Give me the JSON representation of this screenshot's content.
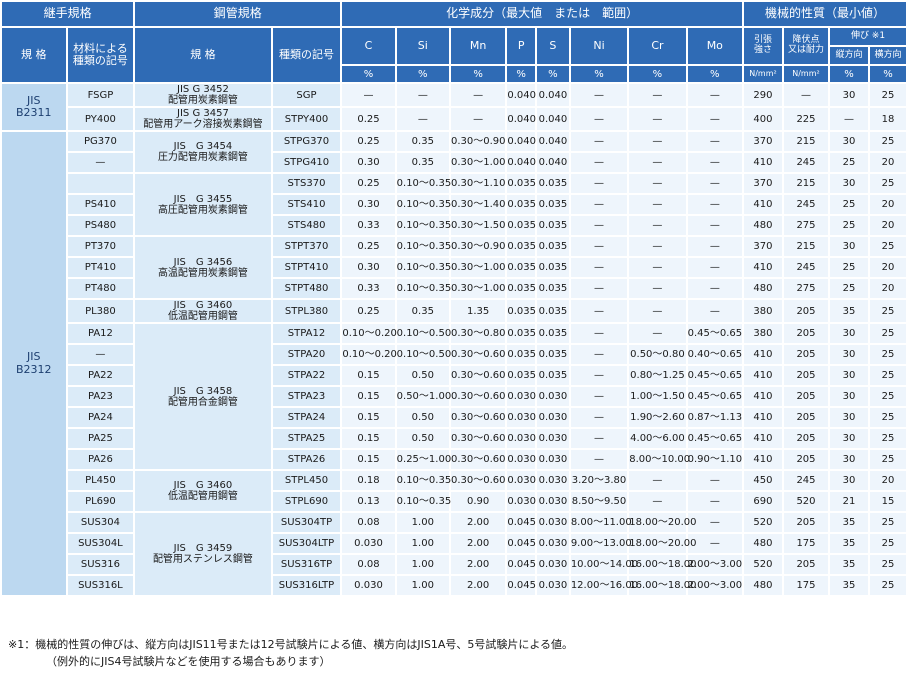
{
  "header": {
    "joint_spec": "継手規格",
    "pipe_spec": "鋼管規格",
    "chem": "化学成分（最大値　または　範囲）",
    "mech": "機械的性質（最小値）",
    "spec": "規 格",
    "mat_sym": "材料による\n種類の記号",
    "pipe_spec_sub": "規 格",
    "kind_sym": "種類の記号",
    "elements": [
      "C",
      "Si",
      "Mn",
      "P",
      "S",
      "Ni",
      "Cr",
      "Mo"
    ],
    "pct": "%",
    "tensile": "引張\n強さ",
    "yield": "降伏点\n又は耐力",
    "elong": "伸び ※1",
    "unit": "N/mm²",
    "long": "縦方向",
    "trans": "横方向"
  },
  "jis": {
    "b2311": "JIS\nB2311",
    "b2312": "JIS\nB2312"
  },
  "rows": [
    {
      "mat": "FSGP",
      "kind": "SGP",
      "c": "—",
      "si": "—",
      "mn": "—",
      "p": "0.040",
      "s": "0.040",
      "ni": "—",
      "cr": "—",
      "mo": "—",
      "ts": "290",
      "ys": "—",
      "el": "30",
      "et": "25"
    },
    {
      "mat": "PY400",
      "kind": "STPY400",
      "c": "0.25",
      "si": "—",
      "mn": "—",
      "p": "0.040",
      "s": "0.040",
      "ni": "—",
      "cr": "—",
      "mo": "—",
      "ts": "400",
      "ys": "225",
      "el": "—",
      "et": "18"
    },
    {
      "mat": "PG370",
      "kind": "STPG370",
      "c": "0.25",
      "si": "0.35",
      "mn": "0.30～0.90",
      "p": "0.040",
      "s": "0.040",
      "ni": "—",
      "cr": "—",
      "mo": "—",
      "ts": "370",
      "ys": "215",
      "el": "30",
      "et": "25"
    },
    {
      "mat": "—",
      "kind": "STPG410",
      "c": "0.30",
      "si": "0.35",
      "mn": "0.30～1.00",
      "p": "0.040",
      "s": "0.040",
      "ni": "—",
      "cr": "—",
      "mo": "—",
      "ts": "410",
      "ys": "245",
      "el": "25",
      "et": "20"
    },
    {
      "mat": "",
      "kind": "STS370",
      "c": "0.25",
      "si": "0.10～0.35",
      "mn": "0.30～1.10",
      "p": "0.035",
      "s": "0.035",
      "ni": "—",
      "cr": "—",
      "mo": "—",
      "ts": "370",
      "ys": "215",
      "el": "30",
      "et": "25"
    },
    {
      "mat": "PS410",
      "kind": "STS410",
      "c": "0.30",
      "si": "0.10～0.35",
      "mn": "0.30～1.40",
      "p": "0.035",
      "s": "0.035",
      "ni": "—",
      "cr": "—",
      "mo": "—",
      "ts": "410",
      "ys": "245",
      "el": "25",
      "et": "20"
    },
    {
      "mat": "PS480",
      "kind": "STS480",
      "c": "0.33",
      "si": "0.10～0.35",
      "mn": "0.30～1.50",
      "p": "0.035",
      "s": "0.035",
      "ni": "—",
      "cr": "—",
      "mo": "—",
      "ts": "480",
      "ys": "275",
      "el": "25",
      "et": "20"
    },
    {
      "mat": "PT370",
      "kind": "STPT370",
      "c": "0.25",
      "si": "0.10～0.35",
      "mn": "0.30～0.90",
      "p": "0.035",
      "s": "0.035",
      "ni": "—",
      "cr": "—",
      "mo": "—",
      "ts": "370",
      "ys": "215",
      "el": "30",
      "et": "25"
    },
    {
      "mat": "PT410",
      "kind": "STPT410",
      "c": "0.30",
      "si": "0.10～0.35",
      "mn": "0.30～1.00",
      "p": "0.035",
      "s": "0.035",
      "ni": "—",
      "cr": "—",
      "mo": "—",
      "ts": "410",
      "ys": "245",
      "el": "25",
      "et": "20"
    },
    {
      "mat": "PT480",
      "kind": "STPT480",
      "c": "0.33",
      "si": "0.10～0.35",
      "mn": "0.30～1.00",
      "p": "0.035",
      "s": "0.035",
      "ni": "—",
      "cr": "—",
      "mo": "—",
      "ts": "480",
      "ys": "275",
      "el": "25",
      "et": "20"
    },
    {
      "mat": "PL380",
      "kind": "STPL380",
      "c": "0.25",
      "si": "0.35",
      "mn": "1.35",
      "p": "0.035",
      "s": "0.035",
      "ni": "—",
      "cr": "—",
      "mo": "—",
      "ts": "380",
      "ys": "205",
      "el": "35",
      "et": "25"
    },
    {
      "mat": "PA12",
      "kind": "STPA12",
      "c": "0.10～0.20",
      "si": "0.10～0.50",
      "mn": "0.30～0.80",
      "p": "0.035",
      "s": "0.035",
      "ni": "—",
      "cr": "—",
      "mo": "0.45～0.65",
      "ts": "380",
      "ys": "205",
      "el": "30",
      "et": "25"
    },
    {
      "mat": "—",
      "kind": "STPA20",
      "c": "0.10～0.20",
      "si": "0.10～0.50",
      "mn": "0.30～0.60",
      "p": "0.035",
      "s": "0.035",
      "ni": "—",
      "cr": "0.50～0.80",
      "mo": "0.40～0.65",
      "ts": "410",
      "ys": "205",
      "el": "30",
      "et": "25"
    },
    {
      "mat": "PA22",
      "kind": "STPA22",
      "c": "0.15",
      "si": "0.50",
      "mn": "0.30～0.60",
      "p": "0.035",
      "s": "0.035",
      "ni": "—",
      "cr": "0.80～1.25",
      "mo": "0.45～0.65",
      "ts": "410",
      "ys": "205",
      "el": "30",
      "et": "25"
    },
    {
      "mat": "PA23",
      "kind": "STPA23",
      "c": "0.15",
      "si": "0.50～1.00",
      "mn": "0.30～0.60",
      "p": "0.030",
      "s": "0.030",
      "ni": "—",
      "cr": "1.00～1.50",
      "mo": "0.45～0.65",
      "ts": "410",
      "ys": "205",
      "el": "30",
      "et": "25"
    },
    {
      "mat": "PA24",
      "kind": "STPA24",
      "c": "0.15",
      "si": "0.50",
      "mn": "0.30～0.60",
      "p": "0.030",
      "s": "0.030",
      "ni": "—",
      "cr": "1.90～2.60",
      "mo": "0.87～1.13",
      "ts": "410",
      "ys": "205",
      "el": "30",
      "et": "25"
    },
    {
      "mat": "PA25",
      "kind": "STPA25",
      "c": "0.15",
      "si": "0.50",
      "mn": "0.30～0.60",
      "p": "0.030",
      "s": "0.030",
      "ni": "—",
      "cr": "4.00～6.00",
      "mo": "0.45～0.65",
      "ts": "410",
      "ys": "205",
      "el": "30",
      "et": "25"
    },
    {
      "mat": "PA26",
      "kind": "STPA26",
      "c": "0.15",
      "si": "0.25～1.00",
      "mn": "0.30～0.60",
      "p": "0.030",
      "s": "0.030",
      "ni": "—",
      "cr": "8.00～10.00",
      "mo": "0.90～1.10",
      "ts": "410",
      "ys": "205",
      "el": "30",
      "et": "25"
    },
    {
      "mat": "PL450",
      "kind": "STPL450",
      "c": "0.18",
      "si": "0.10～0.35",
      "mn": "0.30～0.60",
      "p": "0.030",
      "s": "0.030",
      "ni": "3.20～3.80",
      "cr": "—",
      "mo": "—",
      "ts": "450",
      "ys": "245",
      "el": "30",
      "et": "20"
    },
    {
      "mat": "PL690",
      "kind": "STPL690",
      "c": "0.13",
      "si": "0.10～0.35",
      "mn": "0.90",
      "p": "0.030",
      "s": "0.030",
      "ni": "8.50～9.50",
      "cr": "—",
      "mo": "—",
      "ts": "690",
      "ys": "520",
      "el": "21",
      "et": "15"
    },
    {
      "mat": "SUS304",
      "kind": "SUS304TP",
      "c": "0.08",
      "si": "1.00",
      "mn": "2.00",
      "p": "0.045",
      "s": "0.030",
      "ni": "8.00～11.00",
      "cr": "18.00～20.00",
      "mo": "—",
      "ts": "520",
      "ys": "205",
      "el": "35",
      "et": "25"
    },
    {
      "mat": "SUS304L",
      "kind": "SUS304LTP",
      "c": "0.030",
      "si": "1.00",
      "mn": "2.00",
      "p": "0.045",
      "s": "0.030",
      "ni": "9.00～13.00",
      "cr": "18.00～20.00",
      "mo": "—",
      "ts": "480",
      "ys": "175",
      "el": "35",
      "et": "25"
    },
    {
      "mat": "SUS316",
      "kind": "SUS316TP",
      "c": "0.08",
      "si": "1.00",
      "mn": "2.00",
      "p": "0.045",
      "s": "0.030",
      "ni": "10.00～14.00",
      "cr": "16.00～18.00",
      "mo": "2.00～3.00",
      "ts": "520",
      "ys": "205",
      "el": "35",
      "et": "25"
    },
    {
      "mat": "SUS316L",
      "kind": "SUS316LTP",
      "c": "0.030",
      "si": "1.00",
      "mn": "2.00",
      "p": "0.045",
      "s": "0.030",
      "ni": "12.00～16.00",
      "cr": "16.00～18.00",
      "mo": "2.00～3.00",
      "ts": "480",
      "ys": "175",
      "el": "35",
      "et": "25"
    }
  ],
  "std_groups": [
    {
      "rows": 1,
      "text": "JIS G 3452\n配管用炭素鋼管"
    },
    {
      "rows": 1,
      "text": "JIS G 3457\n配管用アーク溶接炭素鋼管"
    },
    {
      "rows": 2,
      "text": "JIS　G 3454\n圧力配管用炭素鋼管"
    },
    {
      "rows": 3,
      "text": "JIS　G 3455\n高圧配管用炭素鋼管"
    },
    {
      "rows": 3,
      "text": "JIS　G 3456\n高温配管用炭素鋼管"
    },
    {
      "rows": 1,
      "text": "JIS　G 3460\n低温配管用鋼管"
    },
    {
      "rows": 7,
      "text": "JIS　G 3458\n配管用合金鋼管"
    },
    {
      "rows": 2,
      "text": "JIS　G 3460\n低温配管用鋼管"
    },
    {
      "rows": 4,
      "text": "JIS　G 3459\n配管用ステンレス鋼管"
    }
  ],
  "footnote": {
    "line1": "※1：機械的性質の伸びは、縦方向はJIS11号または12号試験片による値、横方向はJIS1A号、5号試験片による値。",
    "line2": "（例外的にJIS4号試験片などを使用する場合もあります）"
  }
}
